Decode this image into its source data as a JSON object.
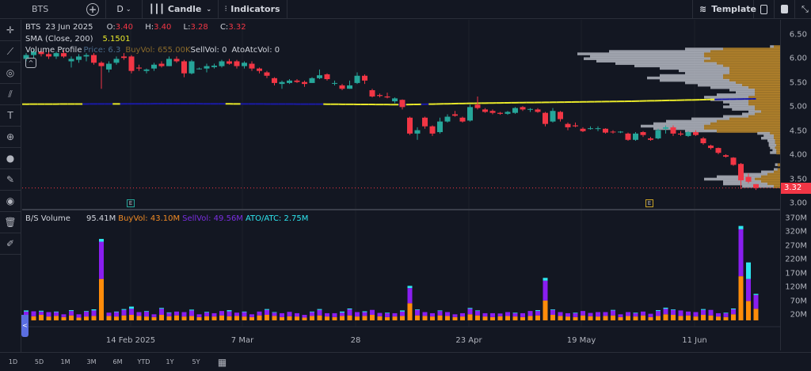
{
  "toolbar": {
    "symbol": "BTS",
    "add_icon": "plus-circle-icon",
    "interval": "D",
    "chart_type": "Candle",
    "indicators": "Indicators",
    "template": "Template"
  },
  "left_tools": [
    "crosshair-icon",
    "trendline-icon",
    "fib-icon",
    "pattern-icon",
    "text-icon",
    "zoom-icon",
    "dot-icon",
    "pencil-icon",
    "eye-icon",
    "trash-icon",
    "edit-icon"
  ],
  "legend": {
    "symbol": "BTS",
    "date": "23 Jun 2025",
    "o_label": "O:",
    "o": "3.40",
    "h_label": "H:",
    "h": "3.40",
    "l_label": "L:",
    "l": "3.28",
    "c_label": "C:",
    "c": "3.32",
    "sma_label": "SMA (Close, 200)",
    "sma_value": "5.1501",
    "vp_label": "Volume Profile",
    "vp_price": "Price: 6.3",
    "vp_buy": "BuyVol: 655.00K",
    "vp_sell": "SellVol: 0",
    "vp_ato": "AtoAtcVol: 0",
    "vol_label": "B/S Volume",
    "vol_total": "95.41M",
    "vol_buy": "BuyVol: 43.10M",
    "vol_sell": "SellVol: 49.56M",
    "vol_ato": "ATO/ATC: 2.75M"
  },
  "colors": {
    "up": "#26a69a",
    "down": "#f23645",
    "sma": "#e8e82a",
    "sma_alt": "#1a1aa6",
    "buy": "#ff8c0a",
    "sell": "#8a1ef0",
    "ato": "#2ee6f0",
    "vp_buy": "#b8862a",
    "vp_sell": "#b2b5be"
  },
  "price_axis": [
    "6.50",
    "6.00",
    "5.50",
    "5.00",
    "4.50",
    "4.00",
    "3.50",
    "3.00"
  ],
  "last_price": "3.32",
  "volume_axis": [
    "370M",
    "320M",
    "270M",
    "220M",
    "170M",
    "120M",
    "70M",
    "20M"
  ],
  "time_axis": [
    "14 Feb 2025",
    "7 Mar",
    "28",
    "23 Apr",
    "19 May",
    "11 Jun"
  ],
  "earnings_marker": "E",
  "ranges": [
    "1D",
    "5D",
    "1M",
    "3M",
    "6M",
    "YTD",
    "1Y",
    "5Y"
  ],
  "chart_data": {
    "type": "candlestick",
    "price_range": [
      2.95,
      6.6
    ],
    "candles": [
      [
        6.0,
        6.12,
        5.95,
        6.08
      ],
      [
        6.08,
        6.2,
        6.02,
        6.15
      ],
      [
        6.15,
        6.22,
        6.05,
        6.1
      ],
      [
        6.1,
        6.18,
        6.0,
        6.05
      ],
      [
        6.05,
        6.15,
        6.0,
        6.12
      ],
      [
        6.12,
        6.18,
        6.02,
        6.05
      ],
      [
        5.95,
        6.05,
        5.82,
        6.0
      ],
      [
        5.98,
        6.1,
        5.92,
        6.05
      ],
      [
        6.05,
        6.12,
        5.95,
        6.08
      ],
      [
        6.08,
        6.12,
        5.88,
        5.92
      ],
      [
        5.92,
        5.95,
        5.38,
        5.85
      ],
      [
        5.78,
        5.95,
        5.72,
        5.9
      ],
      [
        5.92,
        6.05,
        5.88,
        6.0
      ],
      [
        6.05,
        6.12,
        5.98,
        6.02
      ],
      [
        6.05,
        6.08,
        5.7,
        5.75
      ],
      [
        5.82,
        5.88,
        5.75,
        5.8
      ],
      [
        5.75,
        5.8,
        5.7,
        5.78
      ],
      [
        5.8,
        5.92,
        5.75,
        5.88
      ],
      [
        5.9,
        5.95,
        5.82,
        5.85
      ],
      [
        5.85,
        6.05,
        5.85,
        6.0
      ],
      [
        6.0,
        6.05,
        5.92,
        5.95
      ],
      [
        5.95,
        5.98,
        5.62,
        5.7
      ],
      [
        5.7,
        5.98,
        5.68,
        5.95
      ],
      [
        5.8,
        5.82,
        5.78,
        5.8
      ],
      [
        5.8,
        5.9,
        5.72,
        5.85
      ],
      [
        5.83,
        5.9,
        5.8,
        5.86
      ],
      [
        5.85,
        5.98,
        5.82,
        5.95
      ],
      [
        5.95,
        6.0,
        5.88,
        5.9
      ],
      [
        5.95,
        5.98,
        5.8,
        5.85
      ],
      [
        5.85,
        5.95,
        5.8,
        5.92
      ],
      [
        5.9,
        5.95,
        5.75,
        5.8
      ],
      [
        5.8,
        5.82,
        5.7,
        5.75
      ],
      [
        5.72,
        5.75,
        5.6,
        5.65
      ],
      [
        5.6,
        5.62,
        5.45,
        5.5
      ],
      [
        5.48,
        5.55,
        5.38,
        5.52
      ],
      [
        5.5,
        5.58,
        5.48,
        5.55
      ],
      [
        5.55,
        5.58,
        5.5,
        5.52
      ],
      [
        5.52,
        5.55,
        5.42,
        5.48
      ],
      [
        5.5,
        5.62,
        5.5,
        5.6
      ],
      [
        5.6,
        5.78,
        5.58,
        5.66
      ],
      [
        5.68,
        5.7,
        5.55,
        5.58
      ],
      [
        5.5,
        5.55,
        5.45,
        5.5
      ],
      [
        5.45,
        5.48,
        5.35,
        5.38
      ],
      [
        5.38,
        5.55,
        5.38,
        5.45
      ],
      [
        5.5,
        5.72,
        5.48,
        5.65
      ],
      [
        5.65,
        5.68,
        5.48,
        5.55
      ],
      [
        5.35,
        5.38,
        5.2,
        5.22
      ],
      [
        5.25,
        5.28,
        5.2,
        5.23
      ],
      [
        5.22,
        5.3,
        5.18,
        5.2
      ],
      [
        5.12,
        5.2,
        5.08,
        5.18
      ],
      [
        5.15,
        5.16,
        4.95,
        5.0
      ],
      [
        4.78,
        4.8,
        4.42,
        4.45
      ],
      [
        4.45,
        4.58,
        4.32,
        4.52
      ],
      [
        4.78,
        4.8,
        4.55,
        4.6
      ],
      [
        4.6,
        4.62,
        4.4,
        4.45
      ],
      [
        4.48,
        4.78,
        4.45,
        4.7
      ],
      [
        4.7,
        4.85,
        4.68,
        4.8
      ],
      [
        4.85,
        4.92,
        4.8,
        4.82
      ],
      [
        4.78,
        4.8,
        4.68,
        4.7
      ],
      [
        4.72,
        5.05,
        4.7,
        5.0
      ],
      [
        5.05,
        5.22,
        4.95,
        4.98
      ],
      [
        4.95,
        4.98,
        4.88,
        4.9
      ],
      [
        4.92,
        4.95,
        4.85,
        4.88
      ],
      [
        4.88,
        4.9,
        4.84,
        4.86
      ],
      [
        4.86,
        4.92,
        4.84,
        4.9
      ],
      [
        4.88,
        5.0,
        4.86,
        4.98
      ],
      [
        5.0,
        5.02,
        4.92,
        4.95
      ],
      [
        4.95,
        4.98,
        4.9,
        4.96
      ],
      [
        4.95,
        4.98,
        4.88,
        4.9
      ],
      [
        4.88,
        4.9,
        4.6,
        4.65
      ],
      [
        4.7,
        4.98,
        4.68,
        4.92
      ],
      [
        4.9,
        4.92,
        4.7,
        4.75
      ],
      [
        4.65,
        4.68,
        4.52,
        4.58
      ],
      [
        4.62,
        4.68,
        4.58,
        4.6
      ],
      [
        4.55,
        4.58,
        4.48,
        4.5
      ],
      [
        4.55,
        4.6,
        4.53,
        4.56
      ],
      [
        4.55,
        4.6,
        4.5,
        4.56
      ],
      [
        4.55,
        4.56,
        4.45,
        4.47
      ],
      [
        4.49,
        4.52,
        4.45,
        4.48
      ],
      [
        4.48,
        4.5,
        4.46,
        4.49
      ],
      [
        4.45,
        4.47,
        4.3,
        4.32
      ],
      [
        4.32,
        4.48,
        4.3,
        4.45
      ],
      [
        4.48,
        4.5,
        4.38,
        4.42
      ],
      [
        4.35,
        4.38,
        4.3,
        4.32
      ],
      [
        4.35,
        4.55,
        4.33,
        4.52
      ],
      [
        4.55,
        4.62,
        4.45,
        4.58
      ],
      [
        4.58,
        4.62,
        4.4,
        4.45
      ],
      [
        4.45,
        4.5,
        4.4,
        4.43
      ],
      [
        4.4,
        4.5,
        4.38,
        4.48
      ],
      [
        4.48,
        4.52,
        4.4,
        4.42
      ],
      [
        4.35,
        4.38,
        4.22,
        4.25
      ],
      [
        4.2,
        4.22,
        4.12,
        4.15
      ],
      [
        4.15,
        4.16,
        4.02,
        4.05
      ],
      [
        4.0,
        4.02,
        3.95,
        3.97
      ],
      [
        3.95,
        3.96,
        3.78,
        3.8
      ],
      [
        3.82,
        3.84,
        3.3,
        3.48
      ],
      [
        3.55,
        3.62,
        3.42,
        3.45
      ],
      [
        3.4,
        3.4,
        3.28,
        3.32
      ]
    ],
    "sma_points": [
      [
        0,
        5.06
      ],
      [
        20,
        5.07
      ],
      [
        40,
        5.06
      ],
      [
        50,
        5.05
      ],
      [
        60,
        5.08
      ],
      [
        80,
        5.12
      ],
      [
        92,
        5.16
      ],
      [
        97,
        5.17
      ]
    ],
    "sma_alt_ranges": [
      [
        8,
        11
      ],
      [
        13,
        26
      ],
      [
        29,
        39
      ],
      [
        50,
        50
      ],
      [
        53,
        53
      ],
      [
        92,
        97
      ]
    ],
    "volume_range": [
      0,
      390
    ],
    "volume_buy": [
      18,
      15,
      20,
      14,
      16,
      12,
      18,
      10,
      14,
      16,
      150,
      16,
      14,
      18,
      20,
      16,
      14,
      12,
      20,
      15,
      18,
      14,
      16,
      12,
      15,
      14,
      18,
      15,
      16,
      14,
      12,
      18,
      20,
      16,
      12,
      15,
      14,
      10,
      16,
      18,
      14,
      12,
      16,
      18,
      14,
      16,
      20,
      15,
      12,
      14,
      16,
      62,
      18,
      16,
      14,
      18,
      16,
      12,
      14,
      22,
      18,
      14,
      12,
      15,
      16,
      14,
      12,
      16,
      18,
      72,
      20,
      16,
      14,
      12,
      18,
      15,
      14,
      16,
      18,
      12,
      16,
      14,
      18,
      12,
      16,
      22,
      20,
      16,
      18,
      14,
      20,
      18,
      14,
      12,
      22,
      160,
      70,
      42
    ],
    "volume_sell": [
      14,
      18,
      12,
      16,
      14,
      10,
      16,
      12,
      18,
      20,
      135,
      12,
      16,
      20,
      22,
      14,
      18,
      10,
      22,
      12,
      14,
      16,
      20,
      10,
      14,
      12,
      16,
      18,
      12,
      16,
      10,
      14,
      18,
      12,
      14,
      16,
      12,
      10,
      14,
      20,
      12,
      14,
      12,
      22,
      16,
      14,
      18,
      12,
      14,
      12,
      16,
      55,
      20,
      14,
      12,
      16,
      14,
      10,
      12,
      20,
      16,
      12,
      14,
      10,
      14,
      12,
      14,
      18,
      16,
      72,
      18,
      14,
      12,
      14,
      16,
      12,
      16,
      14,
      18,
      10,
      14,
      12,
      14,
      12,
      18,
      20,
      18,
      20,
      14,
      16,
      18,
      20,
      12,
      14,
      18,
      170,
      80,
      50
    ],
    "volume_ato": [
      4,
      0,
      3,
      0,
      2,
      0,
      3,
      0,
      2,
      4,
      10,
      0,
      2,
      3,
      8,
      0,
      2,
      0,
      3,
      2,
      0,
      0,
      3,
      0,
      2,
      0,
      0,
      4,
      0,
      2,
      0,
      0,
      3,
      2,
      0,
      0,
      0,
      0,
      2,
      3,
      0,
      0,
      4,
      3,
      0,
      3,
      0,
      0,
      2,
      0,
      4,
      8,
      2,
      0,
      0,
      2,
      0,
      0,
      0,
      3,
      2,
      0,
      0,
      0,
      0,
      2,
      0,
      0,
      3,
      10,
      2,
      0,
      0,
      2,
      0,
      0,
      0,
      0,
      2,
      0,
      0,
      2,
      0,
      0,
      3,
      4,
      2,
      0,
      0,
      0,
      3,
      0,
      0,
      2,
      3,
      12,
      60,
      4
    ]
  },
  "volume_profile": [
    [
      6.25,
      5,
      3
    ],
    [
      6.2,
      45,
      30
    ],
    [
      6.15,
      55,
      80
    ],
    [
      6.1,
      60,
      100
    ],
    [
      6.05,
      60,
      90
    ],
    [
      6.0,
      55,
      100
    ],
    [
      5.95,
      60,
      85
    ],
    [
      5.9,
      50,
      80
    ],
    [
      5.85,
      45,
      70
    ],
    [
      5.8,
      40,
      55
    ],
    [
      5.75,
      40,
      40
    ],
    [
      5.7,
      40,
      35
    ],
    [
      5.65,
      45,
      50
    ],
    [
      5.6,
      45,
      60
    ],
    [
      5.55,
      40,
      55
    ],
    [
      5.5,
      35,
      40
    ],
    [
      5.45,
      30,
      35
    ],
    [
      5.4,
      25,
      30
    ],
    [
      5.35,
      20,
      20
    ],
    [
      5.3,
      20,
      15
    ],
    [
      5.25,
      20,
      30
    ],
    [
      5.2,
      25,
      35
    ],
    [
      5.15,
      25,
      30
    ],
    [
      5.1,
      25,
      20
    ],
    [
      5.05,
      25,
      15
    ],
    [
      5.0,
      20,
      25
    ],
    [
      4.95,
      20,
      18
    ],
    [
      4.9,
      15,
      10
    ],
    [
      4.85,
      20,
      10
    ],
    [
      4.8,
      25,
      20
    ],
    [
      4.75,
      40,
      30
    ],
    [
      4.7,
      50,
      40
    ],
    [
      4.65,
      55,
      45
    ],
    [
      4.6,
      60,
      50
    ],
    [
      4.55,
      60,
      40
    ],
    [
      4.5,
      50,
      25
    ],
    [
      4.45,
      8,
      10
    ],
    [
      4.4,
      5,
      8
    ],
    [
      4.35,
      5,
      10
    ],
    [
      4.3,
      4,
      6
    ],
    [
      4.25,
      4,
      5
    ],
    [
      4.2,
      3,
      6
    ],
    [
      4.15,
      4,
      4
    ],
    [
      4.1,
      3,
      3
    ],
    [
      4.05,
      3,
      5
    ],
    [
      3.8,
      2,
      2
    ],
    [
      3.7,
      2,
      3
    ],
    [
      3.65,
      5,
      10
    ],
    [
      3.6,
      10,
      20
    ],
    [
      3.55,
      15,
      35
    ],
    [
      3.5,
      20,
      40
    ],
    [
      3.45,
      15,
      30
    ],
    [
      3.4,
      10,
      35
    ],
    [
      3.35,
      5,
      25
    ]
  ]
}
